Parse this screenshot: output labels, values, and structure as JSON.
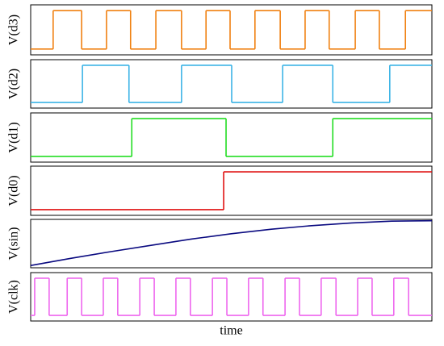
{
  "chart_data": [
    {
      "type": "step",
      "ylabel": "V(d3)",
      "color": "#f08010",
      "xlim": [
        0,
        100
      ],
      "ylim": [
        -0.15,
        1.15
      ],
      "x": [
        0,
        5.6,
        12.7,
        18.9,
        24.9,
        31.2,
        37.6,
        43.7,
        49.7,
        55.9,
        62.2,
        68.4,
        74.4,
        80.9,
        86.9,
        93.4
      ],
      "values": [
        0,
        1,
        0,
        1,
        0,
        1,
        0,
        1,
        0,
        1,
        0,
        1,
        0,
        1,
        0,
        1
      ]
    },
    {
      "type": "step",
      "ylabel": "V(d2)",
      "color": "#3cb4e6",
      "xlim": [
        0,
        100
      ],
      "ylim": [
        -0.15,
        1.15
      ],
      "x": [
        0,
        12.9,
        24.5,
        37.6,
        50.1,
        62.8,
        75.3,
        89.5
      ],
      "values": [
        0,
        1,
        0,
        1,
        0,
        1,
        0,
        1
      ]
    },
    {
      "type": "step",
      "ylabel": "V(d1)",
      "color": "#22dd22",
      "xlim": [
        0,
        100
      ],
      "ylim": [
        -0.15,
        1.15
      ],
      "x": [
        0,
        25.2,
        48.7,
        75.3
      ],
      "values": [
        0,
        1,
        0,
        1
      ]
    },
    {
      "type": "step",
      "ylabel": "V(d0)",
      "color": "#e01010",
      "xlim": [
        0,
        100
      ],
      "ylim": [
        -0.15,
        1.15
      ],
      "x": [
        0,
        48.1
      ],
      "values": [
        0,
        1
      ]
    },
    {
      "type": "line",
      "ylabel": "V(sin)",
      "color": "#0a0a80",
      "xlim": [
        0,
        100
      ],
      "ylim": [
        -0.05,
        1.03
      ],
      "x": [
        0,
        10,
        20,
        30,
        40,
        50,
        60,
        70,
        80,
        90,
        100
      ],
      "values": [
        0,
        0.16,
        0.31,
        0.45,
        0.59,
        0.71,
        0.81,
        0.89,
        0.95,
        0.99,
        1.0
      ]
    },
    {
      "type": "step",
      "ylabel": "V(clk)",
      "xlabel": "time",
      "color": "#ee66ee",
      "xlim": [
        0,
        100
      ],
      "ylim": [
        -0.15,
        1.15
      ],
      "x": [
        0,
        1.0,
        4.6,
        9.1,
        12.7,
        18.1,
        21.7,
        27.2,
        30.8,
        36.2,
        39.8,
        45.3,
        48.9,
        54.3,
        57.9,
        63.4,
        67.0,
        72.4,
        76.1,
        81.5,
        85.1,
        90.5,
        94.2
      ],
      "values": [
        0,
        1,
        0,
        1,
        0,
        1,
        0,
        1,
        0,
        1,
        0,
        1,
        0,
        1,
        0,
        1,
        0,
        1,
        0,
        1,
        0,
        1,
        0
      ]
    }
  ]
}
